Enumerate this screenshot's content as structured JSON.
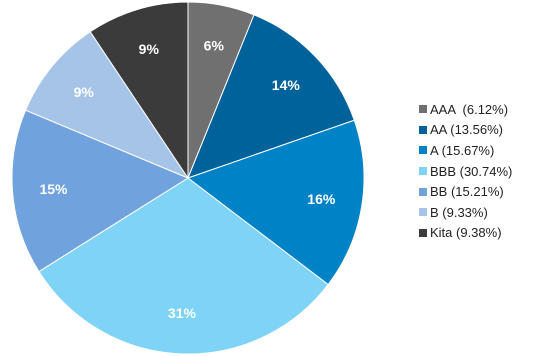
{
  "chart_data": {
    "type": "pie",
    "title": "",
    "slices": [
      {
        "key": "AAA",
        "value": 6.12,
        "slice_label": "6%",
        "legend": "AAA  (6.12%)",
        "color": "#707070"
      },
      {
        "key": "AA",
        "value": 13.56,
        "slice_label": "14%",
        "legend": "AA (13.56%)",
        "color": "#00629b"
      },
      {
        "key": "A",
        "value": 15.67,
        "slice_label": "16%",
        "legend": "A (15.67%)",
        "color": "#0082c6"
      },
      {
        "key": "BBB",
        "value": 30.74,
        "slice_label": "31%",
        "legend": "BBB (30.74%)",
        "color": "#7ed3f7"
      },
      {
        "key": "BB",
        "value": 15.21,
        "slice_label": "15%",
        "legend": "BB (15.21%)",
        "color": "#70a2dd"
      },
      {
        "key": "B",
        "value": 9.33,
        "slice_label": "9%",
        "legend": "B (9.33%)",
        "color": "#a6c4e8"
      },
      {
        "key": "Kita",
        "value": 9.38,
        "slice_label": "9%",
        "legend": "Kita (9.38%)",
        "color": "#3b3b3b"
      }
    ],
    "start_angle": "12 o'clock",
    "direction": "clockwise",
    "legend_position": "right"
  }
}
